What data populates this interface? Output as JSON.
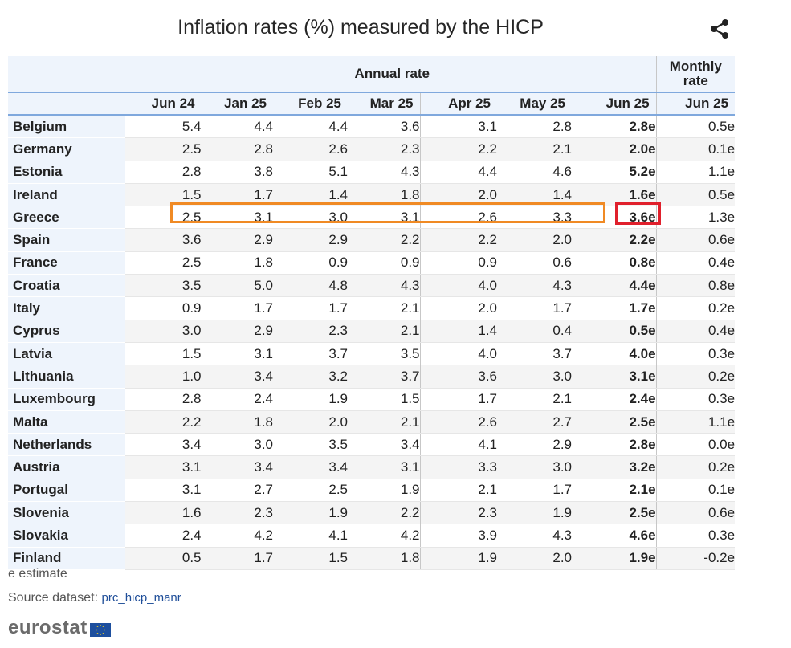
{
  "title": "Inflation rates (%) measured by the HICP",
  "share_icon": "share-icon",
  "header": {
    "annual_label": "Annual rate",
    "monthly_label_line1": "Monthly",
    "monthly_label_line2": "rate",
    "columns": [
      "Jun 24",
      "Jan 25",
      "Feb 25",
      "Mar 25",
      "Apr 25",
      "May 25",
      "Jun 25",
      "Jun 25"
    ]
  },
  "rows": [
    {
      "country": "Belgium",
      "values": [
        "5.4",
        "4.4",
        "4.4",
        "3.6",
        "3.1",
        "2.8",
        "2.8e",
        "0.5e"
      ]
    },
    {
      "country": "Germany",
      "values": [
        "2.5",
        "2.8",
        "2.6",
        "2.3",
        "2.2",
        "2.1",
        "2.0e",
        "0.1e"
      ]
    },
    {
      "country": "Estonia",
      "values": [
        "2.8",
        "3.8",
        "5.1",
        "4.3",
        "4.4",
        "4.6",
        "5.2e",
        "1.1e"
      ]
    },
    {
      "country": "Ireland",
      "values": [
        "1.5",
        "1.7",
        "1.4",
        "1.8",
        "2.0",
        "1.4",
        "1.6e",
        "0.5e"
      ]
    },
    {
      "country": "Greece",
      "values": [
        "2.5",
        "3.1",
        "3.0",
        "3.1",
        "2.6",
        "3.3",
        "3.6e",
        "1.3e"
      ]
    },
    {
      "country": "Spain",
      "values": [
        "3.6",
        "2.9",
        "2.9",
        "2.2",
        "2.2",
        "2.0",
        "2.2e",
        "0.6e"
      ]
    },
    {
      "country": "France",
      "values": [
        "2.5",
        "1.8",
        "0.9",
        "0.9",
        "0.9",
        "0.6",
        "0.8e",
        "0.4e"
      ]
    },
    {
      "country": "Croatia",
      "values": [
        "3.5",
        "5.0",
        "4.8",
        "4.3",
        "4.0",
        "4.3",
        "4.4e",
        "0.8e"
      ]
    },
    {
      "country": "Italy",
      "values": [
        "0.9",
        "1.7",
        "1.7",
        "2.1",
        "2.0",
        "1.7",
        "1.7e",
        "0.2e"
      ]
    },
    {
      "country": "Cyprus",
      "values": [
        "3.0",
        "2.9",
        "2.3",
        "2.1",
        "1.4",
        "0.4",
        "0.5e",
        "0.4e"
      ]
    },
    {
      "country": "Latvia",
      "values": [
        "1.5",
        "3.1",
        "3.7",
        "3.5",
        "4.0",
        "3.7",
        "4.0e",
        "0.3e"
      ]
    },
    {
      "country": "Lithuania",
      "values": [
        "1.0",
        "3.4",
        "3.2",
        "3.7",
        "3.6",
        "3.0",
        "3.1e",
        "0.2e"
      ]
    },
    {
      "country": "Luxembourg",
      "values": [
        "2.8",
        "2.4",
        "1.9",
        "1.5",
        "1.7",
        "2.1",
        "2.4e",
        "0.3e"
      ]
    },
    {
      "country": "Malta",
      "values": [
        "2.2",
        "1.8",
        "2.0",
        "2.1",
        "2.6",
        "2.7",
        "2.5e",
        "1.1e"
      ]
    },
    {
      "country": "Netherlands",
      "values": [
        "3.4",
        "3.0",
        "3.5",
        "3.4",
        "4.1",
        "2.9",
        "2.8e",
        "0.0e"
      ]
    },
    {
      "country": "Austria",
      "values": [
        "3.1",
        "3.4",
        "3.4",
        "3.1",
        "3.3",
        "3.0",
        "3.2e",
        "0.2e"
      ]
    },
    {
      "country": "Portugal",
      "values": [
        "3.1",
        "2.7",
        "2.5",
        "1.9",
        "2.1",
        "1.7",
        "2.1e",
        "0.1e"
      ]
    },
    {
      "country": "Slovenia",
      "values": [
        "1.6",
        "2.3",
        "1.9",
        "2.2",
        "2.3",
        "1.9",
        "2.5e",
        "0.6e"
      ]
    },
    {
      "country": "Slovakia",
      "values": [
        "2.4",
        "4.2",
        "4.1",
        "4.2",
        "3.9",
        "4.3",
        "4.6e",
        "0.3e"
      ]
    },
    {
      "country": "Finland",
      "values": [
        "0.5",
        "1.7",
        "1.5",
        "1.8",
        "1.9",
        "2.0",
        "1.9e",
        "-0.2e"
      ]
    }
  ],
  "footnote": "e estimate",
  "source_label": "Source dataset:",
  "source_link": "prc_hicp_manr",
  "logo_text": "eurostat",
  "colors": {
    "header_bg": "#eef4fc",
    "highlight_orange": "#f08a24",
    "highlight_red": "#e0202c",
    "link": "#1f4e99"
  }
}
